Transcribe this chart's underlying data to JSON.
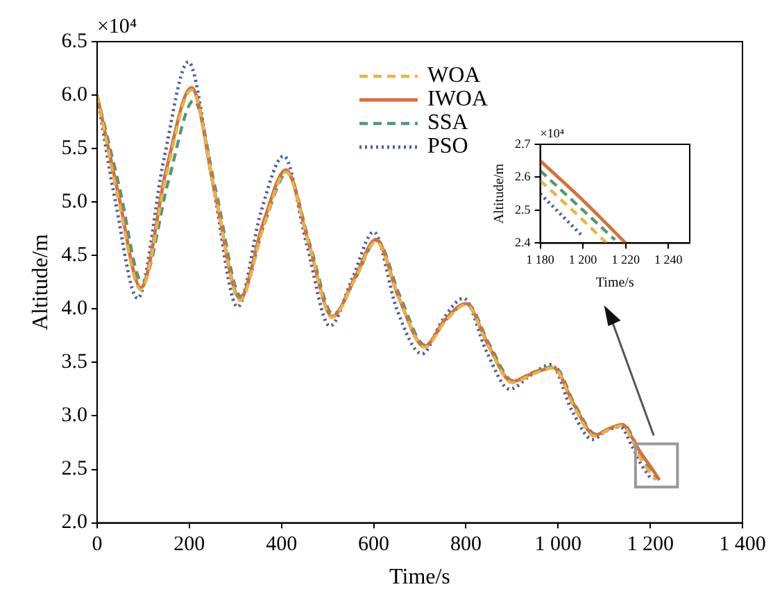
{
  "chart_data": [
    {
      "type": "line",
      "xlabel": "Time/s",
      "ylabel": "Altitude/m",
      "annotations": [
        "×10⁴"
      ],
      "xlim": [
        0,
        1400
      ],
      "xticks": [
        0,
        200,
        400,
        600,
        800,
        {
          "value": 1000,
          "label": "1 000"
        },
        {
          "value": 1200,
          "label": "1 200"
        },
        {
          "value": 1400,
          "label": "1 400"
        }
      ],
      "ylim": [
        2,
        6.5
      ],
      "yticks": [
        {
          "value": 2,
          "label": "2.0"
        },
        {
          "value": 2.5,
          "label": "2.5"
        },
        {
          "value": 3,
          "label": "3.0"
        },
        {
          "value": 3.5,
          "label": "3.5"
        },
        {
          "value": 4,
          "label": "4.0"
        },
        {
          "value": 4.5,
          "label": "4.5"
        },
        {
          "value": 5,
          "label": "5.0"
        },
        {
          "value": 5.5,
          "label": "5.5"
        },
        {
          "value": 6,
          "label": "6.0"
        },
        {
          "value": 6.5,
          "label": "6.5"
        }
      ],
      "legend": "top",
      "series": [
        {
          "name": "WOA",
          "color": "#e6b548",
          "line_style": "dashed",
          "x": [
            0,
            45,
            95,
            150,
            205,
            255,
            310,
            360,
            410,
            460,
            510,
            560,
            605,
            655,
            710,
            755,
            800,
            850,
            900,
            945,
            990,
            1035,
            1080,
            1110,
            1140,
            1160,
            1180,
            1200,
            1211
          ],
          "values": [
            6.0,
            5.05,
            4.18,
            5.25,
            6.05,
            5.1,
            4.08,
            4.75,
            5.28,
            4.6,
            3.92,
            4.28,
            4.63,
            4.1,
            3.64,
            3.88,
            4.04,
            3.64,
            3.31,
            3.39,
            3.45,
            3.08,
            2.81,
            2.87,
            2.91,
            2.78,
            2.59,
            2.47,
            2.4
          ]
        },
        {
          "name": "IWOA",
          "color": "#d5703c",
          "line_style": "solid",
          "x": [
            0,
            45,
            95,
            150,
            205,
            255,
            310,
            360,
            410,
            460,
            510,
            560,
            605,
            655,
            710,
            755,
            800,
            850,
            900,
            945,
            990,
            1035,
            1080,
            1110,
            1140,
            1160,
            1180,
            1200,
            1220
          ],
          "values": [
            6.0,
            5.1,
            4.2,
            5.3,
            6.07,
            5.1,
            4.1,
            4.8,
            5.3,
            4.6,
            3.93,
            4.3,
            4.65,
            4.1,
            3.65,
            3.9,
            4.05,
            3.65,
            3.32,
            3.4,
            3.45,
            3.1,
            2.82,
            2.88,
            2.92,
            2.8,
            2.65,
            2.53,
            2.4
          ]
        },
        {
          "name": "SSA",
          "color": "#4f9a78",
          "line_style": "dashed",
          "x": [
            0,
            48,
            98,
            155,
            210,
            258,
            312,
            362,
            412,
            462,
            512,
            562,
            607,
            657,
            712,
            757,
            802,
            852,
            902,
            947,
            992,
            1037,
            1082,
            1112,
            1142,
            1162,
            1180,
            1200,
            1215
          ],
          "values": [
            6.0,
            5.15,
            4.25,
            5.2,
            5.95,
            5.1,
            4.12,
            4.78,
            5.27,
            4.6,
            3.95,
            4.3,
            4.64,
            4.12,
            3.66,
            3.9,
            4.05,
            3.66,
            3.33,
            3.41,
            3.46,
            3.1,
            2.83,
            2.88,
            2.92,
            2.8,
            2.62,
            2.5,
            2.41
          ]
        },
        {
          "name": "PSO",
          "color": "#4c5fa8",
          "line_style": "dotted",
          "x": [
            0,
            40,
            88,
            145,
            198,
            250,
            305,
            355,
            405,
            455,
            505,
            555,
            600,
            650,
            705,
            750,
            795,
            845,
            895,
            940,
            985,
            1030,
            1075,
            1105,
            1135,
            1160,
            1180,
            1200
          ],
          "values": [
            6.0,
            5.0,
            4.1,
            5.4,
            6.31,
            5.2,
            4.02,
            4.9,
            5.43,
            4.6,
            3.84,
            4.3,
            4.72,
            4.0,
            3.58,
            3.9,
            4.1,
            3.6,
            3.25,
            3.38,
            3.48,
            3.05,
            2.78,
            2.86,
            2.9,
            2.72,
            2.55,
            2.42
          ]
        }
      ]
    },
    {
      "type": "line",
      "xlabel": "Time/s",
      "ylabel": "Altitude/m",
      "annotations": [
        "×10⁴"
      ],
      "xlim": [
        1180,
        1250
      ],
      "xticks": [
        {
          "value": 1180,
          "label": "1 180"
        },
        {
          "value": 1200,
          "label": "1 200"
        },
        {
          "value": 1220,
          "label": "1 220"
        },
        {
          "value": 1240,
          "label": "1 240"
        }
      ],
      "ylim": [
        2.4,
        2.7
      ],
      "yticks": [
        2.4,
        2.5,
        2.6,
        2.7
      ],
      "series": [
        {
          "color": "#e6b548",
          "line_style": "dashed",
          "x": [
            1180,
            1200,
            1211
          ],
          "values": [
            2.59,
            2.47,
            2.4
          ]
        },
        {
          "color": "#d5703c",
          "line_style": "solid",
          "x": [
            1180,
            1200,
            1220
          ],
          "values": [
            2.65,
            2.53,
            2.4
          ]
        },
        {
          "color": "#4f9a78",
          "line_style": "dashed",
          "x": [
            1180,
            1200,
            1215
          ],
          "values": [
            2.62,
            2.5,
            2.41
          ]
        },
        {
          "color": "#4c5fa8",
          "line_style": "dotted",
          "x": [
            1180,
            1200
          ],
          "values": [
            2.55,
            2.42
          ]
        }
      ]
    }
  ]
}
